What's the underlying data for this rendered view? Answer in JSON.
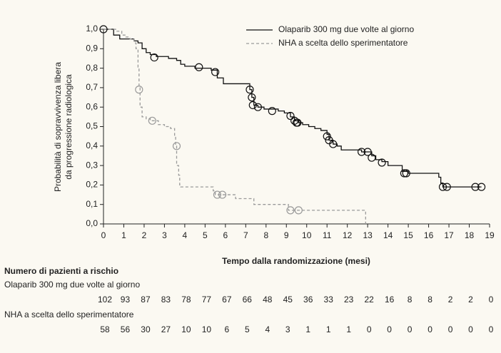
{
  "chart_data": {
    "type": "step",
    "xlabel": "Tempo dalla randomizzazione (mesi)",
    "ylabel": [
      "Probabilità di sopravvivenza libera",
      "da progressione radiologica"
    ],
    "xlim": [
      0,
      19
    ],
    "ylim": [
      0,
      1
    ],
    "xticks": [
      0,
      1,
      2,
      3,
      4,
      5,
      6,
      7,
      8,
      9,
      10,
      11,
      12,
      13,
      14,
      15,
      16,
      17,
      18,
      19
    ],
    "yticks": [
      {
        "value": 0,
        "label": "0,0"
      },
      {
        "value": 0.1,
        "label": "0,1"
      },
      {
        "value": 0.2,
        "label": "0,2"
      },
      {
        "value": 0.3,
        "label": "0,3"
      },
      {
        "value": 0.4,
        "label": "0,4"
      },
      {
        "value": 0.5,
        "label": "0,5"
      },
      {
        "value": 0.6,
        "label": "0,6"
      },
      {
        "value": 0.7,
        "label": "0,7"
      },
      {
        "value": 0.8,
        "label": "0,8"
      },
      {
        "value": 0.9,
        "label": "0,9"
      },
      {
        "value": 1,
        "label": "1,0"
      }
    ],
    "series": [
      {
        "name": "Olaparib 300 mg due volte al giorno",
        "color": "#111111",
        "dashed": false,
        "x": [
          0,
          0.5,
          0.8,
          1.5,
          1.7,
          1.9,
          2.1,
          2.3,
          2.6,
          3.2,
          3.6,
          3.8,
          4.0,
          4.5,
          5.3,
          5.6,
          5.9,
          7.2,
          7.3,
          7.4,
          7.6,
          7.9,
          8.6,
          8.9,
          9.2,
          9.4,
          9.6,
          9.8,
          10.1,
          10.4,
          10.7,
          11.0,
          11.1,
          11.3,
          11.5,
          11.7,
          12.7,
          13.2,
          13.4,
          13.7,
          14.0,
          14.7,
          15.0,
          16.5,
          16.6,
          16.7,
          18.6
        ],
        "values": [
          1.0,
          0.97,
          0.95,
          0.94,
          0.93,
          0.9,
          0.88,
          0.87,
          0.86,
          0.85,
          0.84,
          0.82,
          0.81,
          0.8,
          0.79,
          0.75,
          0.72,
          0.69,
          0.65,
          0.61,
          0.6,
          0.59,
          0.58,
          0.57,
          0.55,
          0.53,
          0.52,
          0.51,
          0.5,
          0.49,
          0.48,
          0.46,
          0.43,
          0.41,
          0.4,
          0.38,
          0.37,
          0.35,
          0.33,
          0.32,
          0.3,
          0.27,
          0.26,
          0.24,
          0.21,
          0.19,
          0.19
        ],
        "censor_x": [
          0,
          2.5,
          4.7,
          5.5,
          7.2,
          7.3,
          7.35,
          7.6,
          8.3,
          9.2,
          9.4,
          9.5,
          9.55,
          11.0,
          11.1,
          11.3,
          12.7,
          13.0,
          13.2,
          13.7,
          14.8,
          14.9,
          16.7,
          16.9,
          18.3,
          18.6
        ],
        "censor_values": [
          1.0,
          0.855,
          0.805,
          0.78,
          0.69,
          0.65,
          0.61,
          0.6,
          0.58,
          0.555,
          0.53,
          0.52,
          0.52,
          0.45,
          0.43,
          0.41,
          0.37,
          0.37,
          0.34,
          0.315,
          0.26,
          0.26,
          0.19,
          0.19,
          0.19,
          0.19
        ]
      },
      {
        "name": "NHA a scelta dello sperimentatore",
        "color": "#9a9a9a",
        "dashed": true,
        "x": [
          0,
          0.6,
          0.9,
          1.1,
          1.3,
          1.5,
          1.6,
          1.7,
          1.75,
          1.8,
          1.9,
          2.1,
          2.3,
          2.7,
          3.0,
          3.3,
          3.5,
          3.55,
          3.6,
          3.7,
          3.75,
          3.8,
          5.4,
          5.5,
          6.5,
          7.4,
          9.1,
          12.9,
          12.9
        ],
        "values": [
          1.0,
          0.99,
          0.97,
          0.96,
          0.95,
          0.93,
          0.9,
          0.8,
          0.7,
          0.6,
          0.55,
          0.54,
          0.53,
          0.51,
          0.5,
          0.49,
          0.45,
          0.4,
          0.3,
          0.25,
          0.2,
          0.19,
          0.17,
          0.15,
          0.13,
          0.1,
          0.07,
          0.07,
          0.0
        ],
        "censor_x": [
          1.75,
          2.4,
          3.6,
          5.6,
          5.85,
          9.2,
          9.6
        ],
        "censor_values": [
          0.69,
          0.53,
          0.4,
          0.15,
          0.15,
          0.07,
          0.07
        ]
      }
    ],
    "risk_table": {
      "title": "Numero di pazienti a rischio",
      "rows": [
        {
          "label": "Olaparib 300 mg due volte al giorno",
          "counts": [
            102,
            93,
            87,
            83,
            78,
            77,
            67,
            66,
            48,
            45,
            36,
            33,
            23,
            22,
            16,
            8,
            8,
            2,
            2,
            0
          ]
        },
        {
          "label": "NHA a scelta dello sperimentatore",
          "counts": [
            58,
            56,
            30,
            27,
            10,
            10,
            6,
            5,
            4,
            3,
            1,
            1,
            1,
            0,
            0,
            0,
            0,
            0,
            0,
            0
          ]
        }
      ]
    }
  }
}
